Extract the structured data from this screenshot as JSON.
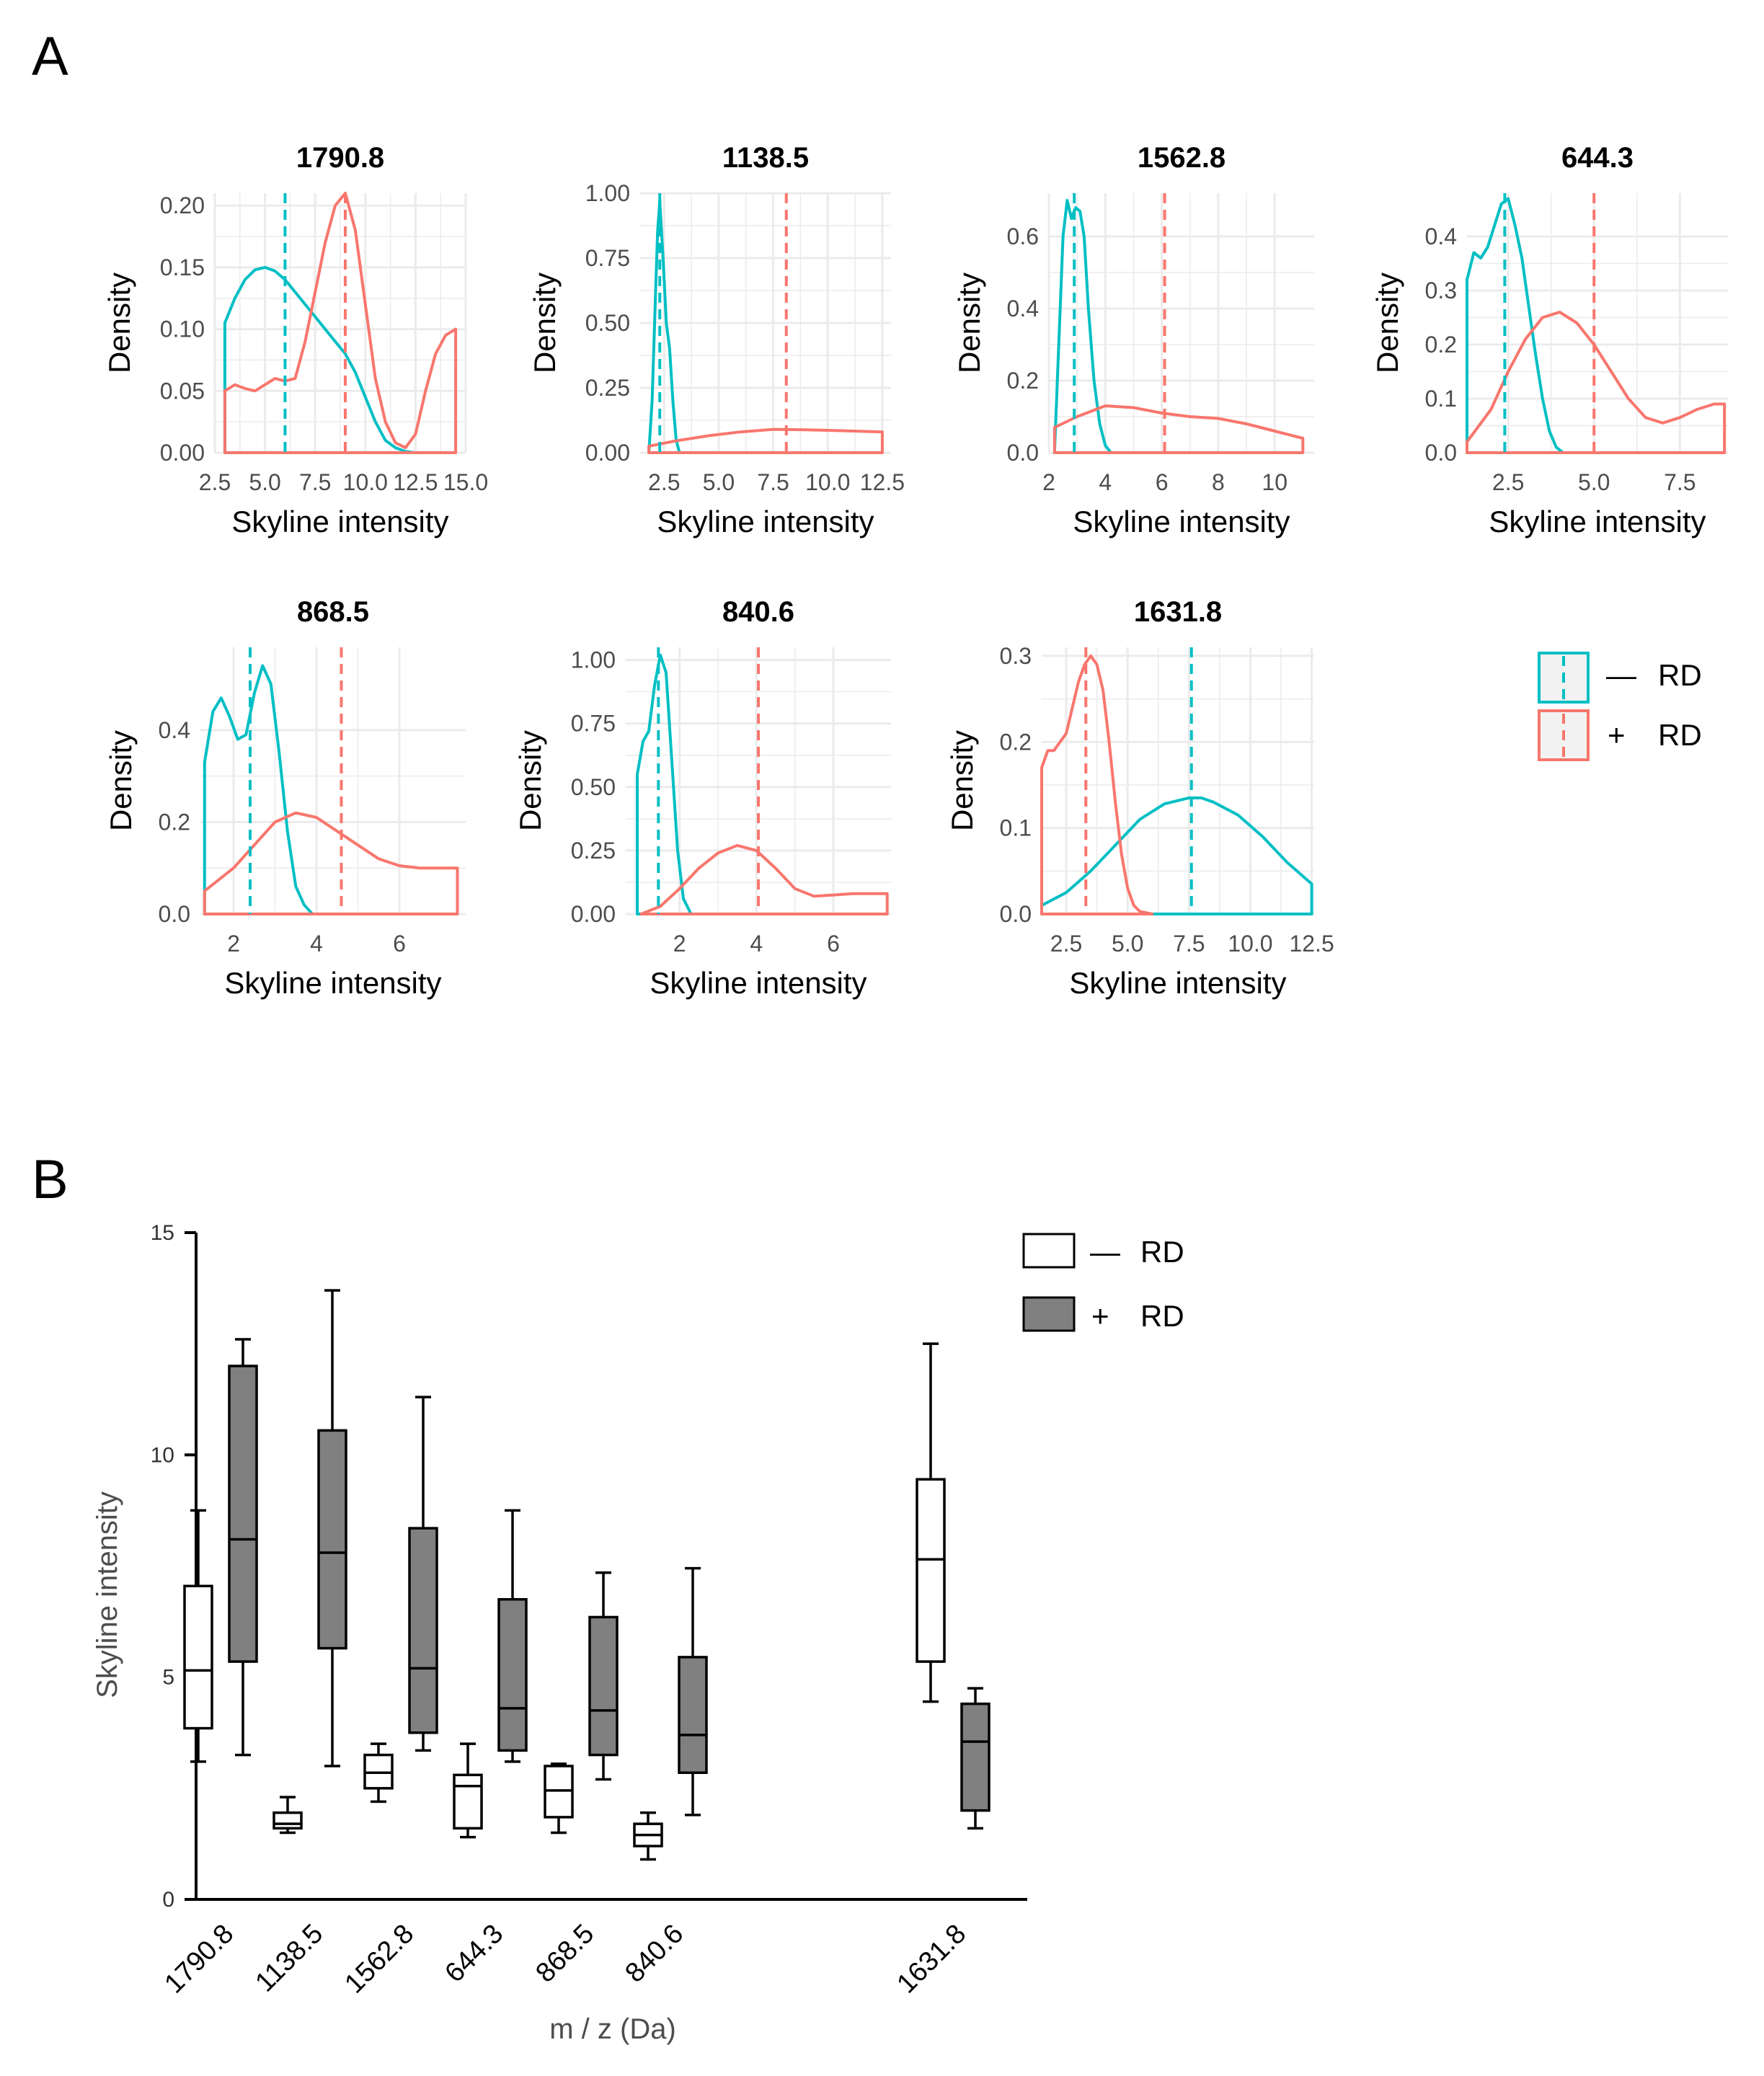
{
  "figure": {
    "panel_a_label": "A",
    "panel_b_label": "B"
  },
  "colors": {
    "minus_rd": "#00BFC4",
    "plus_rd": "#F8766D",
    "box_minus_fill": "#ffffff",
    "box_plus_fill": "#808080",
    "grid": "#ebebeb"
  },
  "legend_a": {
    "items": [
      {
        "symbol": "—",
        "label": "RD",
        "color": "#00BFC4"
      },
      {
        "symbol": "+",
        "label": "RD",
        "color": "#F8766D"
      }
    ]
  },
  "legend_b": {
    "items": [
      {
        "symbol": "—",
        "label": "RD",
        "fill": "#ffffff"
      },
      {
        "symbol": "+",
        "label": "RD",
        "fill": "#808080"
      }
    ]
  },
  "chart_data": [
    {
      "type": "area",
      "panel": "A",
      "title": "1790.8",
      "xlabel": "Skyline intensity",
      "ylabel": "Density",
      "xlim": [
        2.5,
        15.0
      ],
      "ylim": [
        0,
        0.21
      ],
      "xticks": [
        2.5,
        5.0,
        7.5,
        10.0,
        12.5,
        15.0
      ],
      "xtick_labels": [
        "2.5",
        "5.0",
        "7.5",
        "10.0",
        "12.5",
        "15.0"
      ],
      "yticks": [
        0,
        0.05,
        0.1,
        0.15,
        0.2
      ],
      "ytick_labels": [
        "0.00",
        "0.05",
        "0.10",
        "0.15",
        "0.20"
      ],
      "series": [
        {
          "name": "— RD",
          "color": "#00BFC4",
          "mean": 6.0,
          "x": [
            3.0,
            3.5,
            4.0,
            4.5,
            5.0,
            5.5,
            6.0,
            6.5,
            7.0,
            7.5,
            8.0,
            8.5,
            9.0,
            9.5,
            10.0,
            10.5,
            11.0,
            11.5,
            12.0,
            12.5
          ],
          "y": [
            0.105,
            0.125,
            0.14,
            0.148,
            0.15,
            0.147,
            0.14,
            0.13,
            0.12,
            0.11,
            0.1,
            0.09,
            0.08,
            0.065,
            0.045,
            0.025,
            0.01,
            0.004,
            0.001,
            0.0
          ]
        },
        {
          "name": "+ RD",
          "color": "#F8766D",
          "mean": 9.0,
          "x": [
            3.0,
            3.5,
            4.0,
            4.5,
            5.0,
            5.5,
            6.0,
            6.5,
            7.0,
            7.5,
            8.0,
            8.5,
            9.0,
            9.5,
            10.0,
            10.5,
            11.0,
            11.5,
            12.0,
            12.5,
            13.0,
            13.5,
            14.0,
            14.5
          ],
          "y": [
            0.05,
            0.055,
            0.052,
            0.05,
            0.055,
            0.06,
            0.058,
            0.06,
            0.09,
            0.13,
            0.17,
            0.2,
            0.21,
            0.18,
            0.12,
            0.06,
            0.025,
            0.008,
            0.004,
            0.015,
            0.05,
            0.08,
            0.095,
            0.1
          ]
        }
      ]
    },
    {
      "type": "area",
      "panel": "A",
      "title": "1138.5",
      "xlabel": "Skyline intensity",
      "ylabel": "Density",
      "xlim": [
        1.4,
        12.9
      ],
      "ylim": [
        0,
        1.0
      ],
      "xticks": [
        2.5,
        5.0,
        7.5,
        10.0,
        12.5
      ],
      "xtick_labels": [
        "2.5",
        "5.0",
        "7.5",
        "10.0",
        "12.5"
      ],
      "yticks": [
        0,
        0.25,
        0.5,
        0.75,
        1.0
      ],
      "ytick_labels": [
        "0.00",
        "0.25",
        "0.50",
        "0.75",
        "1.00"
      ],
      "series": [
        {
          "name": "— RD",
          "color": "#00BFC4",
          "mean": 2.3,
          "x": [
            1.8,
            1.95,
            2.1,
            2.2,
            2.3,
            2.45,
            2.6,
            2.75,
            2.9,
            3.05,
            3.2
          ],
          "y": [
            0.0,
            0.2,
            0.6,
            0.85,
            0.97,
            0.75,
            0.5,
            0.4,
            0.2,
            0.05,
            0.0
          ]
        },
        {
          "name": "+ RD",
          "color": "#F8766D",
          "mean": 8.1,
          "x": [
            1.8,
            3.0,
            4.5,
            6.0,
            7.5,
            9.0,
            10.5,
            12.5
          ],
          "y": [
            0.025,
            0.045,
            0.065,
            0.08,
            0.09,
            0.088,
            0.085,
            0.08
          ]
        }
      ]
    },
    {
      "type": "area",
      "panel": "A",
      "title": "1562.8",
      "xlabel": "Skyline intensity",
      "ylabel": "Density",
      "xlim": [
        2.0,
        11.4
      ],
      "ylim": [
        0,
        0.72
      ],
      "xticks": [
        2,
        4,
        6,
        8,
        10
      ],
      "xtick_labels": [
        "2",
        "4",
        "6",
        "8",
        "10"
      ],
      "yticks": [
        0,
        0.2,
        0.4,
        0.6
      ],
      "ytick_labels": [
        "0.0",
        "0.2",
        "0.4",
        "0.6"
      ],
      "series": [
        {
          "name": "— RD",
          "color": "#00BFC4",
          "mean": 2.9,
          "x": [
            2.2,
            2.35,
            2.5,
            2.65,
            2.8,
            2.95,
            3.1,
            3.25,
            3.4,
            3.6,
            3.8,
            4.0,
            4.2
          ],
          "y": [
            0.0,
            0.3,
            0.6,
            0.7,
            0.65,
            0.68,
            0.67,
            0.6,
            0.4,
            0.2,
            0.08,
            0.02,
            0.0
          ]
        },
        {
          "name": "+ RD",
          "color": "#F8766D",
          "mean": 6.1,
          "x": [
            2.2,
            3.0,
            4.0,
            5.0,
            6.0,
            7.0,
            8.0,
            9.0,
            10.0,
            11.0
          ],
          "y": [
            0.07,
            0.1,
            0.13,
            0.125,
            0.11,
            0.1,
            0.095,
            0.08,
            0.06,
            0.04
          ]
        }
      ]
    },
    {
      "type": "area",
      "panel": "A",
      "title": "644.3",
      "xlabel": "Skyline intensity",
      "ylabel": "Density",
      "xlim": [
        1.3,
        8.9
      ],
      "ylim": [
        0,
        0.48
      ],
      "xticks": [
        2.5,
        5.0,
        7.5
      ],
      "xtick_labels": [
        "2.5",
        "5.0",
        "7.5"
      ],
      "yticks": [
        0,
        0.1,
        0.2,
        0.3,
        0.4
      ],
      "ytick_labels": [
        "0.0",
        "0.1",
        "0.2",
        "0.3",
        "0.4"
      ],
      "series": [
        {
          "name": "— RD",
          "color": "#00BFC4",
          "mean": 2.4,
          "x": [
            1.3,
            1.5,
            1.7,
            1.9,
            2.1,
            2.3,
            2.5,
            2.7,
            2.9,
            3.1,
            3.3,
            3.5,
            3.7,
            3.9,
            4.1
          ],
          "y": [
            0.32,
            0.37,
            0.36,
            0.38,
            0.42,
            0.46,
            0.47,
            0.42,
            0.36,
            0.27,
            0.18,
            0.1,
            0.04,
            0.01,
            0.0
          ]
        },
        {
          "name": "+ RD",
          "color": "#F8766D",
          "mean": 5.0,
          "x": [
            1.3,
            2.0,
            2.5,
            3.0,
            3.5,
            4.0,
            4.5,
            5.0,
            5.5,
            6.0,
            6.5,
            7.0,
            7.5,
            8.0,
            8.5,
            8.8
          ],
          "y": [
            0.02,
            0.08,
            0.15,
            0.21,
            0.25,
            0.26,
            0.24,
            0.2,
            0.15,
            0.1,
            0.065,
            0.055,
            0.065,
            0.08,
            0.09,
            0.09
          ]
        }
      ]
    },
    {
      "type": "area",
      "panel": "A",
      "title": "868.5",
      "xlabel": "Skyline intensity",
      "ylabel": "Density",
      "xlim": [
        1.2,
        7.6
      ],
      "ylim": [
        0,
        0.58
      ],
      "xticks": [
        2,
        4,
        6
      ],
      "xtick_labels": [
        "2",
        "4",
        "6"
      ],
      "yticks": [
        0,
        0.2,
        0.4
      ],
      "ytick_labels": [
        "0.0",
        "0.2",
        "0.4"
      ],
      "series": [
        {
          "name": "— RD",
          "color": "#00BFC4",
          "mean": 2.4,
          "x": [
            1.3,
            1.5,
            1.7,
            1.9,
            2.1,
            2.3,
            2.5,
            2.7,
            2.9,
            3.1,
            3.3,
            3.5,
            3.7,
            3.9
          ],
          "y": [
            0.33,
            0.44,
            0.47,
            0.43,
            0.38,
            0.39,
            0.48,
            0.54,
            0.5,
            0.35,
            0.18,
            0.06,
            0.02,
            0.0
          ]
        },
        {
          "name": "+ RD",
          "color": "#F8766D",
          "mean": 4.6,
          "x": [
            1.3,
            2.0,
            2.5,
            3.0,
            3.5,
            4.0,
            4.5,
            5.0,
            5.5,
            6.0,
            6.5,
            7.0,
            7.4
          ],
          "y": [
            0.05,
            0.1,
            0.15,
            0.2,
            0.22,
            0.21,
            0.18,
            0.15,
            0.12,
            0.105,
            0.1,
            0.1,
            0.1
          ]
        }
      ]
    },
    {
      "type": "area",
      "panel": "A",
      "title": "840.6",
      "xlabel": "Skyline intensity",
      "ylabel": "Density",
      "xlim": [
        0.6,
        7.5
      ],
      "ylim": [
        0,
        1.05
      ],
      "xticks": [
        2,
        4,
        6
      ],
      "xtick_labels": [
        "2",
        "4",
        "6"
      ],
      "yticks": [
        0,
        0.25,
        0.5,
        0.75,
        1.0
      ],
      "ytick_labels": [
        "0.00",
        "0.25",
        "0.50",
        "0.75",
        "1.00"
      ],
      "series": [
        {
          "name": "— RD",
          "color": "#00BFC4",
          "mean": 1.45,
          "x": [
            0.9,
            1.05,
            1.2,
            1.35,
            1.5,
            1.65,
            1.8,
            1.95,
            2.1,
            2.3
          ],
          "y": [
            0.55,
            0.68,
            0.72,
            0.9,
            1.02,
            0.95,
            0.6,
            0.25,
            0.06,
            0.0
          ]
        },
        {
          "name": "+ RD",
          "color": "#F8766D",
          "mean": 4.05,
          "x": [
            1.0,
            1.5,
            2.0,
            2.5,
            3.0,
            3.5,
            4.0,
            4.5,
            5.0,
            5.5,
            6.0,
            6.5,
            7.0,
            7.4
          ],
          "y": [
            0.0,
            0.03,
            0.1,
            0.18,
            0.24,
            0.27,
            0.25,
            0.18,
            0.1,
            0.07,
            0.075,
            0.08,
            0.08,
            0.08
          ]
        }
      ]
    },
    {
      "type": "area",
      "panel": "A",
      "title": "1631.8",
      "xlabel": "Skyline intensity",
      "ylabel": "Density",
      "xlim": [
        1.5,
        12.6
      ],
      "ylim": [
        0,
        0.31
      ],
      "xticks": [
        2.5,
        5.0,
        7.5,
        10.0,
        12.5
      ],
      "xtick_labels": [
        "2.5",
        "5.0",
        "7.5",
        "10.0",
        "12.5"
      ],
      "yticks": [
        0,
        0.1,
        0.2,
        0.3
      ],
      "ytick_labels": [
        "0.0",
        "0.1",
        "0.2",
        "0.3"
      ],
      "series": [
        {
          "name": "— RD",
          "color": "#00BFC4",
          "mean": 7.6,
          "x": [
            1.5,
            2.5,
            3.5,
            4.5,
            5.5,
            6.5,
            7.5,
            8.0,
            8.5,
            9.5,
            10.5,
            11.5,
            12.5
          ],
          "y": [
            0.01,
            0.025,
            0.05,
            0.08,
            0.11,
            0.128,
            0.135,
            0.135,
            0.13,
            0.115,
            0.09,
            0.06,
            0.035
          ]
        },
        {
          "name": "+ RD",
          "color": "#F8766D",
          "mean": 3.3,
          "x": [
            1.5,
            1.75,
            2.0,
            2.25,
            2.5,
            2.75,
            3.0,
            3.25,
            3.5,
            3.75,
            4.0,
            4.25,
            4.5,
            4.75,
            5.0,
            5.25,
            5.5,
            6.0
          ],
          "y": [
            0.17,
            0.19,
            0.19,
            0.2,
            0.21,
            0.24,
            0.27,
            0.29,
            0.3,
            0.29,
            0.26,
            0.2,
            0.13,
            0.07,
            0.03,
            0.01,
            0.003,
            0.0
          ]
        }
      ]
    },
    {
      "type": "box",
      "panel": "B",
      "xlabel": "m / z (Da)",
      "ylabel": "Skyline intensity",
      "ylim": [
        0,
        15
      ],
      "yticks": [
        0,
        5,
        10,
        15
      ],
      "ytick_labels": [
        "0",
        "5",
        "10",
        "15"
      ],
      "categories": [
        "1790.8",
        "1138.5",
        "1562.8",
        "644.3",
        "868.5",
        "840.6",
        "1631.8"
      ],
      "series": [
        {
          "name": "— RD",
          "fill": "#ffffff",
          "boxes": [
            {
              "min": 3.1,
              "q1": 3.85,
              "median": 5.15,
              "q3": 7.05,
              "max": 8.75
            },
            {
              "min": 1.5,
              "q1": 1.6,
              "median": 1.7,
              "q3": 1.95,
              "max": 2.3
            },
            {
              "min": 2.2,
              "q1": 2.5,
              "median": 2.85,
              "q3": 3.25,
              "max": 3.5
            },
            {
              "min": 1.4,
              "q1": 1.6,
              "median": 2.55,
              "q3": 2.8,
              "max": 3.5
            },
            {
              "min": 1.5,
              "q1": 1.85,
              "median": 2.45,
              "q3": 3.0,
              "max": 3.05
            },
            {
              "min": 0.9,
              "q1": 1.2,
              "median": 1.45,
              "q3": 1.7,
              "max": 1.95
            },
            {
              "min": 4.45,
              "q1": 5.35,
              "median": 7.65,
              "q3": 9.45,
              "max": 12.5
            }
          ]
        },
        {
          "name": "+ RD",
          "fill": "#808080",
          "boxes": [
            {
              "min": 3.25,
              "q1": 5.35,
              "median": 8.1,
              "q3": 12.0,
              "max": 12.6
            },
            {
              "min": 3.0,
              "q1": 5.65,
              "median": 7.8,
              "q3": 10.55,
              "max": 13.7
            },
            {
              "min": 3.35,
              "q1": 3.75,
              "median": 5.2,
              "q3": 8.35,
              "max": 11.3
            },
            {
              "min": 3.1,
              "q1": 3.35,
              "median": 4.3,
              "q3": 6.75,
              "max": 8.75
            },
            {
              "min": 2.7,
              "q1": 3.25,
              "median": 4.25,
              "q3": 6.35,
              "max": 7.35
            },
            {
              "min": 1.9,
              "q1": 2.85,
              "median": 3.7,
              "q3": 5.45,
              "max": 7.45
            },
            {
              "min": 1.6,
              "q1": 2.0,
              "median": 3.55,
              "q3": 4.4,
              "max": 4.75
            }
          ]
        }
      ]
    }
  ]
}
